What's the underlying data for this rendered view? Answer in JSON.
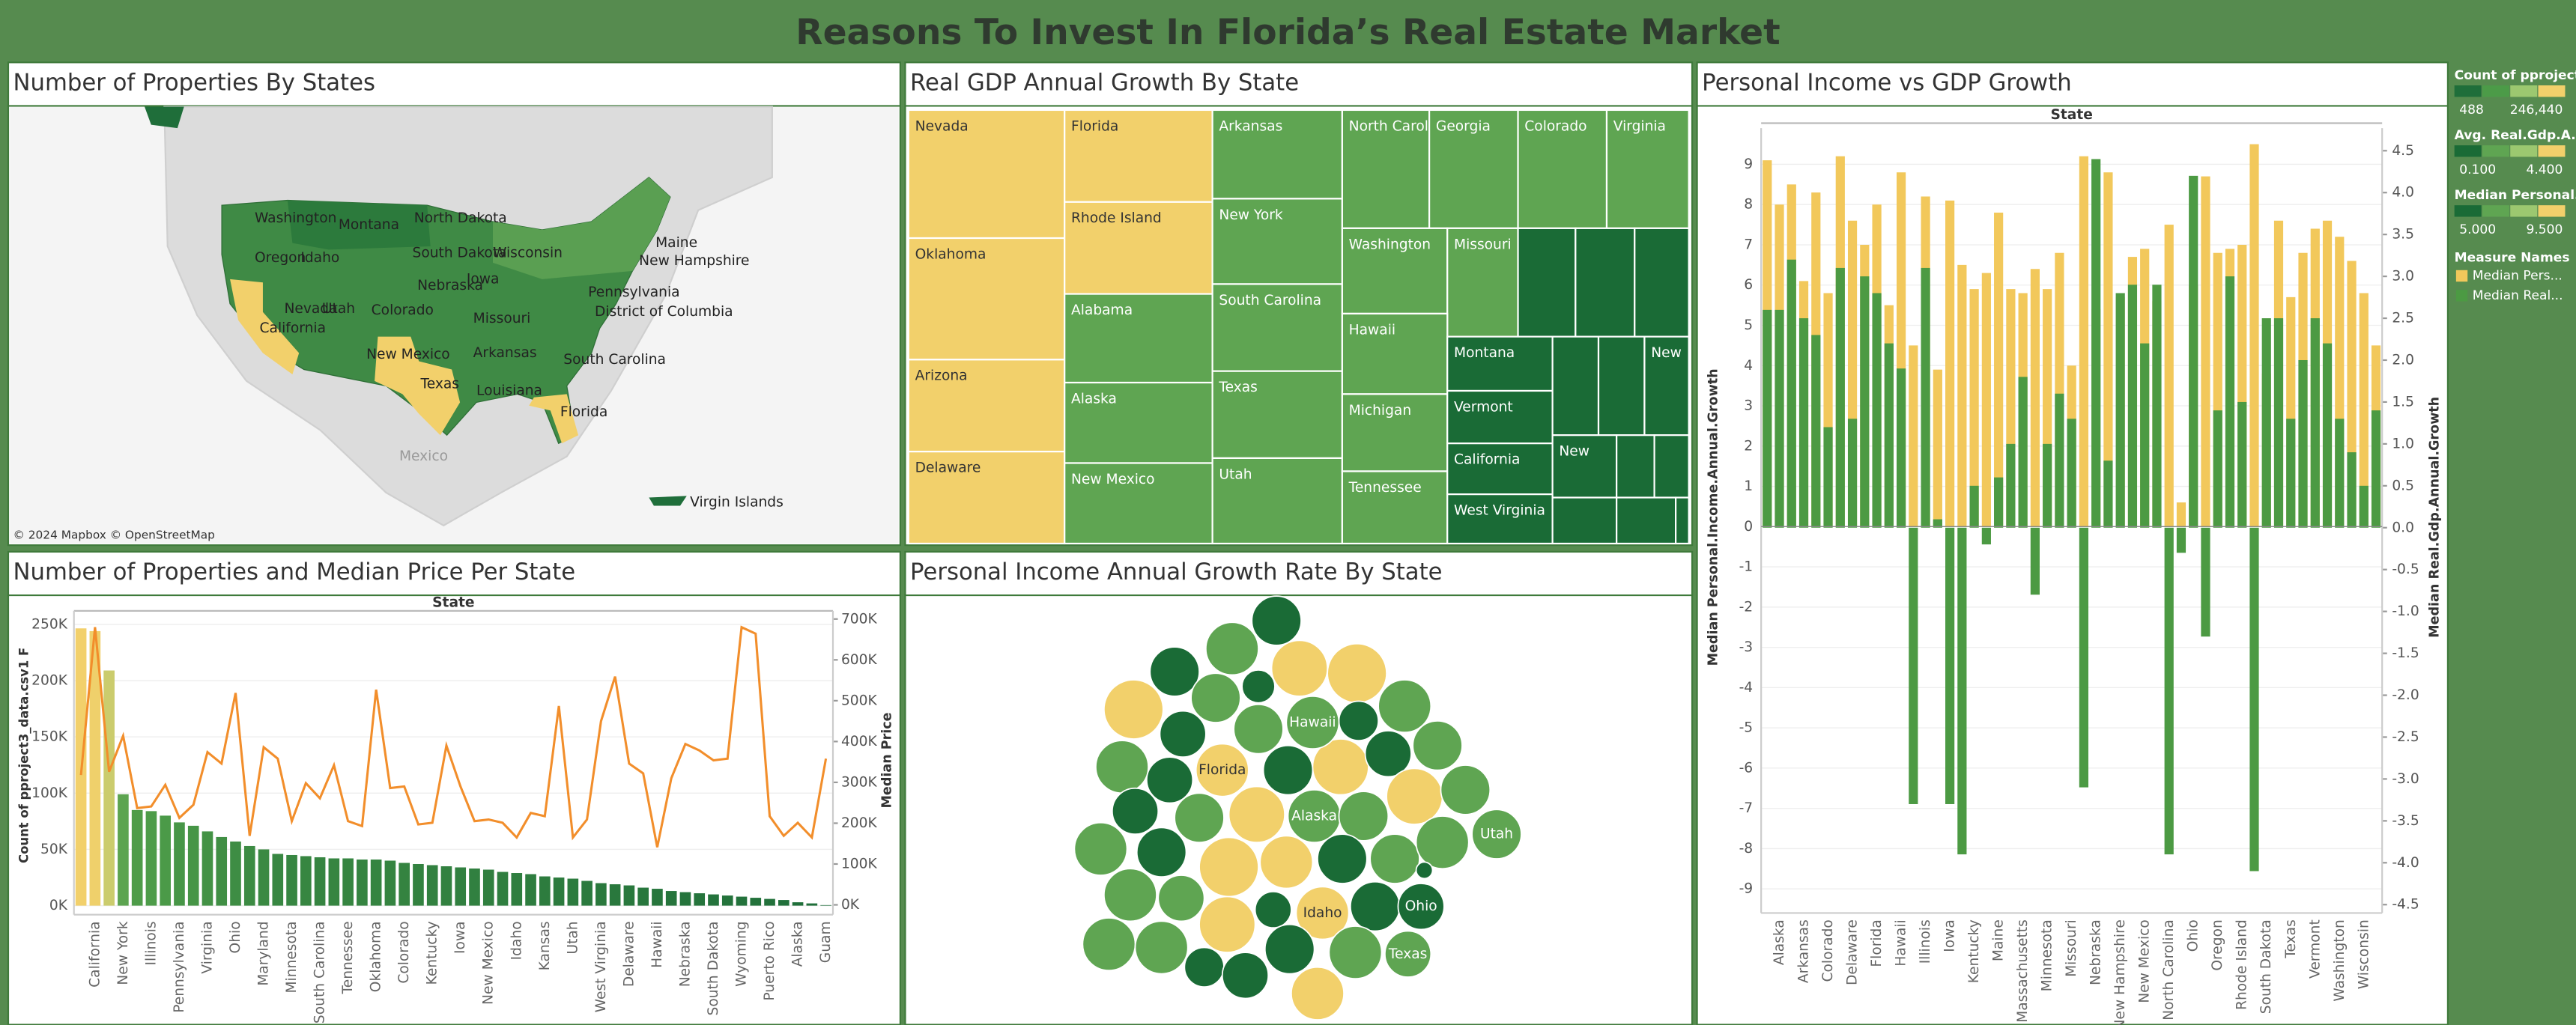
{
  "title": "Reasons To Invest In Florida’s Real Estate Market",
  "chart_data": [
    {
      "type": "map",
      "title": "Number of Properties By States",
      "labels": [
        "Washington",
        "Montana",
        "North Dakota",
        "Oregon",
        "Idaho",
        "South Dakota",
        "Wisconsin",
        "Maine",
        "New Hampshire",
        "Nebraska",
        "Iowa",
        "Pennsylvania",
        "Nevada",
        "Utah",
        "Colorado",
        "Missouri",
        "District of Columbia",
        "California",
        "New Mexico",
        "Arkansas",
        "South Carolina",
        "Texas",
        "Louisiana",
        "Florida",
        "Virgin Islands",
        "Mexico"
      ],
      "attribution": "© 2024 Mapbox © OpenStreetMap"
    },
    {
      "type": "treemap",
      "title": "Real GDP Annual Growth By State",
      "labels": [
        "Nevada",
        "Florida",
        "Oklahoma",
        "Rhode Island",
        "Arizona",
        "Delaware",
        "Alabama",
        "Alaska",
        "New Mexico",
        "Arkansas",
        "New York",
        "South Carolina",
        "Texas",
        "Utah",
        "North Carolina",
        "Georgia",
        "Colorado",
        "Virginia",
        "Washington",
        "Missouri",
        "Hawaii",
        "Michigan",
        "Tennessee",
        null,
        null,
        null,
        "Montana",
        "Vermont",
        "California",
        "West Virginia",
        null,
        null,
        "New",
        "New",
        null,
        null,
        null,
        null,
        null
      ],
      "colors": [
        "#f2d06b",
        "#f2d06b",
        "#f2d06b",
        "#f2d06b",
        "#f2d06b",
        "#f2d06b",
        "#5fa552",
        "#5fa552",
        "#5fa552",
        "#5fa552",
        "#5fa552",
        "#5fa552",
        "#5fa552",
        "#5fa552",
        "#5fa552",
        "#5fa552",
        "#5fa552",
        "#5fa552",
        "#5fa552",
        "#5fa552",
        "#5fa552",
        "#5fa552",
        "#5fa552",
        "#1a6b36",
        "#1a6b36",
        "#1a6b36",
        "#1a6b36",
        "#1a6b36",
        "#1a6b36",
        "#1a6b36",
        "#1a6b36",
        "#1a6b36",
        "#1a6b36",
        "#1a6b36",
        "#1a6b36",
        "#1a6b36",
        "#1a6b36",
        "#1a6b36",
        "#1a6b36"
      ]
    },
    {
      "type": "bar",
      "title": "Personal Income vs GDP Growth",
      "x_label": "State",
      "y_label": "Median Personal.Income.Annual.Growth",
      "y2_label": "Median Real.Gdp.Annual.Growth",
      "categories": [
        null,
        "Alaska",
        null,
        "Arkansas",
        null,
        "Colorado",
        null,
        "Delaware",
        null,
        "Florida",
        null,
        "Hawaii",
        null,
        "Illinois",
        null,
        "Iowa",
        null,
        "Kentucky",
        null,
        "Maine",
        null,
        "Massachusetts",
        null,
        "Minnesota",
        null,
        "Missouri",
        null,
        "Nebraska",
        null,
        "New Hampshire",
        null,
        "New Mexico",
        null,
        "North Carolina",
        null,
        "Ohio",
        null,
        "Oregon",
        null,
        "Rhode Island",
        null,
        "South Dakota",
        null,
        "Texas",
        null,
        "Vermont",
        null,
        "Washington",
        null,
        "Wisconsin",
        null
      ],
      "series": [
        {
          "name": "Median Pers...",
          "color": "#f2c85b",
          "values": [
            9.1,
            8.0,
            8.5,
            6.1,
            8.3,
            5.8,
            9.2,
            7.6,
            7.0,
            8.0,
            5.5,
            8.8,
            4.5,
            8.2,
            3.9,
            8.1,
            6.5,
            5.9,
            6.3,
            7.8,
            5.9,
            5.8,
            6.4,
            5.9,
            6.8,
            4.0,
            9.2,
            5.4,
            8.8,
            5.7,
            6.7,
            6.9,
            5.6,
            7.5,
            0.6,
            6.0,
            8.7,
            6.8,
            6.9,
            7.0,
            9.5,
            3.8,
            7.6,
            5.7,
            6.8,
            7.4,
            7.6,
            7.2,
            6.6,
            5.8,
            4.5
          ]
        },
        {
          "name": "Median Real...",
          "color": "#4c9a43",
          "axis": "y2",
          "values": [
            2.6,
            2.6,
            3.2,
            2.5,
            2.3,
            1.2,
            3.1,
            1.3,
            3.0,
            2.8,
            2.2,
            1.9,
            -3.3,
            3.1,
            0.1,
            -3.3,
            -3.9,
            0.5,
            -0.2,
            0.6,
            1.0,
            1.8,
            -0.8,
            1.0,
            1.6,
            1.3,
            -3.1,
            4.4,
            0.8,
            2.8,
            2.9,
            2.2,
            2.9,
            -3.9,
            -0.3,
            4.2,
            -1.3,
            1.4,
            3.0,
            1.5,
            -4.1,
            2.5,
            2.5,
            1.3,
            2.0,
            2.5,
            2.2,
            1.3,
            0.9,
            0.5,
            1.4
          ]
        }
      ],
      "ylim": [
        -9.6,
        9.9
      ],
      "yticks": [
        -9,
        -8,
        -7,
        -6,
        -5,
        -4,
        -3,
        -2,
        -1,
        0,
        1,
        2,
        3,
        4,
        5,
        6,
        7,
        8,
        9
      ],
      "y2lim": [
        -4.6,
        4.77
      ],
      "y2ticks": [
        -4.5,
        {
          "value": -4,
          "label": "-4.0"
        },
        -3.5,
        {
          "value": -3,
          "label": "-3.0"
        },
        -2.5,
        {
          "value": -2,
          "label": "-2.0"
        },
        -1.5,
        {
          "value": -1,
          "label": "-1.0"
        },
        -0.5,
        {
          "value": 0,
          "label": "0.0"
        },
        0.5,
        {
          "value": 1,
          "label": "1.0"
        },
        1.5,
        {
          "value": 2,
          "label": "2.0"
        },
        2.5,
        {
          "value": 3,
          "label": "3.0"
        },
        3.5,
        {
          "value": 4,
          "label": "4.0"
        },
        4.5
      ],
      "grid": true
    },
    {
      "type": "bar_line",
      "title": "Number of Properties and Median  Price Per State",
      "x_label": "State",
      "y_label": "Count of pproject3_data.csv1 F",
      "y2_label": "Median Price",
      "categories": [
        null,
        "California",
        null,
        "New York",
        null,
        "Illinois",
        null,
        "Pennsylvania",
        null,
        "Virginia",
        null,
        "Ohio",
        null,
        "Maryland",
        null,
        "Minnesota",
        null,
        "South Carolina",
        null,
        "Tennessee",
        null,
        "Oklahoma",
        null,
        "Colorado",
        null,
        "Kentucky",
        null,
        "Iowa",
        null,
        "New Mexico",
        null,
        "Idaho",
        null,
        "Kansas",
        null,
        "Utah",
        null,
        "West Virginia",
        null,
        "Delaware",
        null,
        "Hawaii",
        null,
        "Nebraska",
        null,
        "South Dakota",
        null,
        "Wyoming",
        null,
        "Puerto Rico",
        null,
        "Alaska",
        null,
        "Guam"
      ],
      "series": [
        {
          "type": "bar",
          "values": [
            246440,
            244000,
            209000,
            99000,
            85000,
            84000,
            80000,
            74000,
            71000,
            66000,
            61000,
            57000,
            53000,
            50000,
            46000,
            45000,
            44000,
            43000,
            42000,
            42000,
            41000,
            41000,
            40000,
            38000,
            37000,
            36000,
            35000,
            34000,
            33000,
            32000,
            30000,
            29000,
            28000,
            26000,
            25000,
            24000,
            22000,
            20000,
            19000,
            18000,
            16000,
            15000,
            13000,
            12000,
            11000,
            10000,
            9000,
            8000,
            7000,
            6000,
            5000,
            3000,
            2000,
            488
          ]
        },
        {
          "type": "line",
          "axis": "y2",
          "color": "#f28e2b",
          "values": [
            318000,
            680000,
            326000,
            414000,
            237000,
            241000,
            294000,
            213000,
            245000,
            374000,
            346000,
            519000,
            169000,
            386000,
            358000,
            205000,
            298000,
            261000,
            342000,
            205000,
            193000,
            527000,
            286000,
            290000,
            197000,
            201000,
            390000,
            290000,
            205000,
            209000,
            201000,
            165000,
            225000,
            217000,
            487000,
            165000,
            209000,
            450000,
            559000,
            346000,
            322000,
            141000,
            310000,
            394000,
            378000,
            354000,
            358000,
            680000,
            664000,
            217000,
            169000,
            201000,
            165000,
            358000
          ]
        }
      ],
      "ylim": [
        -8000,
        262000
      ],
      "yticks": [
        {
          "value": 0,
          "label": "0K"
        },
        {
          "value": 50000,
          "label": "50K"
        },
        {
          "value": 100000,
          "label": "100K"
        },
        {
          "value": 150000,
          "label": "150K"
        },
        {
          "value": 200000,
          "label": "200K"
        },
        {
          "value": 250000,
          "label": "250K"
        }
      ],
      "y2lim": [
        -24000,
        720000
      ],
      "y2ticks": [
        {
          "value": 0,
          "label": "0K"
        },
        {
          "value": 100000,
          "label": "100K"
        },
        {
          "value": 200000,
          "label": "200K"
        },
        {
          "value": 300000,
          "label": "300K"
        },
        {
          "value": 400000,
          "label": "400K"
        },
        {
          "value": 500000,
          "label": "500K"
        },
        {
          "value": 600000,
          "label": "600K"
        },
        {
          "value": 700000,
          "label": "700K"
        }
      ],
      "grid": true
    },
    {
      "type": "packed_bubble",
      "title": "Personal Income Annual Growth Rate By State",
      "labels": [
        null,
        null,
        null,
        null,
        null,
        null,
        null,
        null,
        null,
        null,
        null,
        null,
        null,
        null,
        null,
        "Florida",
        null,
        null,
        null,
        null,
        null,
        null,
        null,
        "Alaska",
        null,
        null,
        null,
        null,
        null,
        null,
        null,
        null,
        null,
        null,
        "Utah",
        null,
        null,
        null,
        null,
        "Idaho",
        null,
        "Ohio",
        null,
        null,
        null,
        null,
        null,
        null,
        "Texas",
        null,
        null,
        "Hawaii"
      ],
      "colors": [
        "#1a6b36",
        "#1a6b36",
        "#5fa552",
        "#f2d06b",
        "#f2d06b",
        "#f2d06b",
        "#5fa552",
        "#1a6b36",
        "#1a6b36",
        "#5fa552",
        "#f2d06b",
        "#1a6b36",
        "#5fa552",
        "#5fa552",
        "#1a6b36",
        "#f2d06b",
        "#1a6b36",
        "#f2d06b",
        "#1a6b36",
        "#5fa552",
        "#1a6b36",
        "#5fa552",
        "#f2d06b",
        "#5fa552",
        "#5fa552",
        "#f2d06b",
        "#5fa552",
        "#5fa552",
        "#1a6b36",
        "#f2d06b",
        "#f2d06b",
        "#1a6b36",
        "#5fa552",
        "#5fa552",
        "#5fa552",
        "#5fa552",
        "#5fa552",
        "#f2d06b",
        "#1a6b36",
        "#f2d06b",
        "#1a6b36",
        "#1a6b36",
        "#5fa552",
        "#5fa552",
        "#1a6b36",
        "#1a6b36",
        "#1a6b36",
        "#5fa552",
        "#5fa552",
        "#f2d06b",
        "#1a6b36",
        "#5fa552"
      ]
    }
  ],
  "legends": [
    {
      "title": "Count of pproject..",
      "min": {
        "value": 488,
        "label": "488"
      },
      "max": {
        "value": 246440,
        "label": "246,440"
      },
      "colors": [
        "#1f6e3a",
        "#4c9b48",
        "#9cc870",
        "#f2d06b"
      ]
    },
    {
      "title": "Avg. Real.Gdp.A..",
      "min": {
        "value": 0.1,
        "label": "0.100"
      },
      "max": {
        "value": 4.4,
        "label": "4.400"
      },
      "colors": [
        "#1a6b36",
        "#5fa552",
        "#9cc870",
        "#f2d06b"
      ]
    },
    {
      "title": "Median Personal..",
      "min": {
        "value": 5,
        "label": "5.000"
      },
      "max": {
        "value": 9.5,
        "label": "9.500"
      },
      "colors": [
        "#1a6b36",
        "#5fa552",
        "#9cc870",
        "#f2d06b"
      ]
    }
  ],
  "measure_names_title": "Measure Names"
}
